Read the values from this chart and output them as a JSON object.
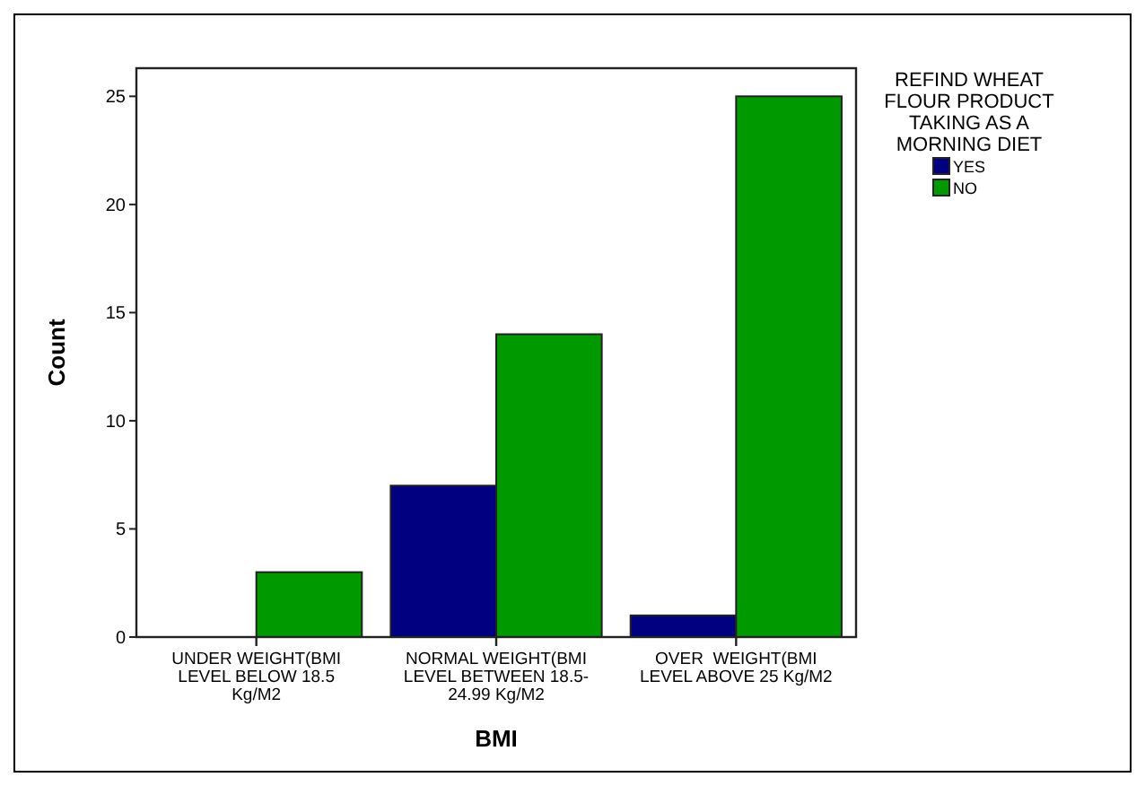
{
  "chart_data": {
    "type": "bar",
    "xlabel": "BMI",
    "ylabel": "Count",
    "legend_title": "REFIND WHEAT FLOUR PRODUCT TAKING AS A MORNING DIET",
    "categories": [
      "UNDER WEIGHT(BMI LEVEL BELOW 18.5 Kg/M2",
      "NORMAL WEIGHT(BMI LEVEL BETWEEN 18.5-24.99 Kg/M2",
      "OVER  WEIGHT(BMI LEVEL ABOVE 25 Kg/M2"
    ],
    "series": [
      {
        "name": "YES",
        "color": "#000080",
        "values": [
          0,
          7,
          1
        ]
      },
      {
        "name": "NO",
        "color": "#009900",
        "values": [
          3,
          14,
          25
        ]
      }
    ],
    "ylim": [
      0,
      26.3
    ],
    "yticks": [
      0,
      5,
      10,
      15,
      20,
      25
    ],
    "grid": false,
    "legend": "top right"
  }
}
